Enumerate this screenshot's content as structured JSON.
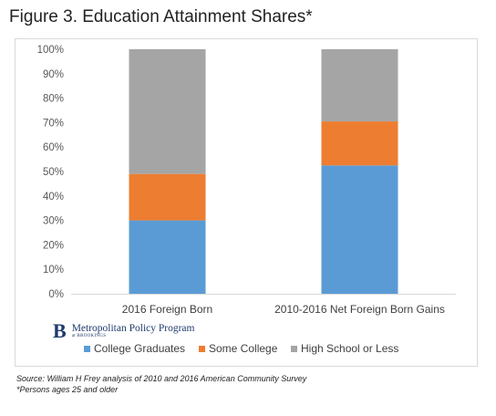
{
  "figure": {
    "title": "Figure 3. Education Attainment Shares*",
    "source": "Source: William H Frey analysis of 2010 and 2016 American Community Survey",
    "footnote": "*Persons ages 25 and older"
  },
  "logo": {
    "mark": "B",
    "name": "Metropolitan Policy Program",
    "sub": "at BROOKINGS"
  },
  "chart_data": {
    "type": "bar",
    "stacked": true,
    "categories": [
      "2016 Foreign Born",
      "2010-2016 Net Foreign Born Gains"
    ],
    "series": [
      {
        "name": "College Graduates",
        "color": "#5b9bd5",
        "values": [
          30,
          52.5
        ]
      },
      {
        "name": "Some College",
        "color": "#ed7d31",
        "values": [
          19,
          18
        ]
      },
      {
        "name": "High School or Less",
        "color": "#a5a5a5",
        "values": [
          51,
          29.5
        ]
      }
    ],
    "yticks": [
      "0%",
      "10%",
      "20%",
      "30%",
      "40%",
      "50%",
      "60%",
      "70%",
      "80%",
      "90%",
      "100%"
    ],
    "ylim": [
      0,
      100
    ],
    "grid": false,
    "legend_position": "bottom"
  }
}
